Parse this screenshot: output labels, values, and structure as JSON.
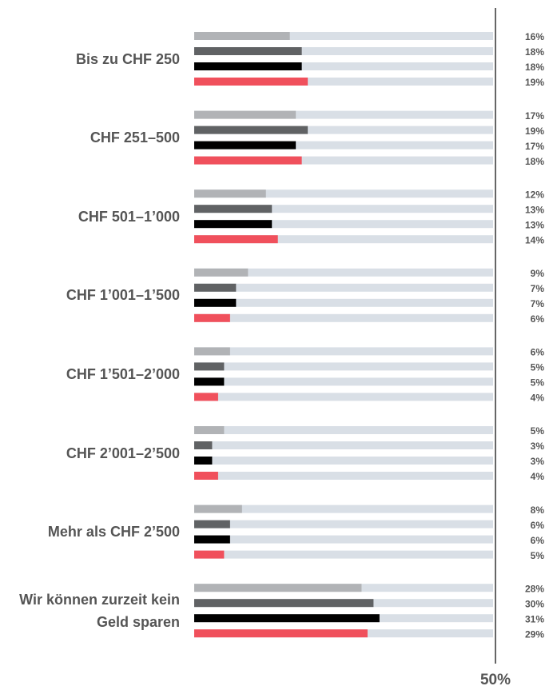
{
  "chart_data": {
    "type": "bar",
    "orientation": "horizontal",
    "categories": [
      "Bis zu CHF 250",
      "CHF 251–500",
      "CHF 501–1’000",
      "CHF 1’001–1’500",
      "CHF 1’501–2’000",
      "CHF 2’001–2’500",
      "Mehr als CHF 2’500",
      "Wir können zurzeit kein Geld sparen"
    ],
    "series": [
      {
        "color": "#b1b3b6",
        "values": [
          16,
          17,
          12,
          9,
          6,
          5,
          8,
          28
        ],
        "value_labels": [
          "16%",
          "17%",
          "12%",
          "9%",
          "6%",
          "5%",
          "8%",
          "28%"
        ]
      },
      {
        "color": "#606264",
        "values": [
          18,
          19,
          13,
          7,
          5,
          3,
          6,
          30
        ],
        "value_labels": [
          "18%",
          "19%",
          "13%",
          "7%",
          "5%",
          "3%",
          "6%",
          "30%"
        ]
      },
      {
        "color": "#000000",
        "values": [
          18,
          17,
          13,
          7,
          5,
          3,
          6,
          31
        ],
        "value_labels": [
          "18%",
          "17%",
          "13%",
          "7%",
          "5%",
          "3%",
          "6%",
          "31%"
        ]
      },
      {
        "color": "#f0505c",
        "values": [
          19,
          18,
          14,
          6,
          4,
          4,
          5,
          29
        ],
        "value_labels": [
          "19%",
          "18%",
          "14%",
          "6%",
          "4%",
          "4%",
          "5%",
          "29%"
        ]
      }
    ],
    "xlim": [
      0,
      50
    ],
    "xticks": [
      {
        "value": 50,
        "label": "50%"
      }
    ]
  }
}
